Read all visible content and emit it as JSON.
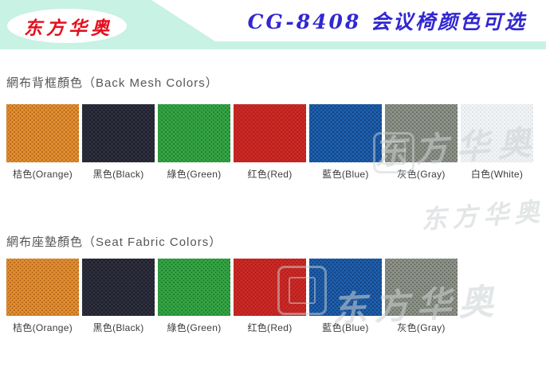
{
  "header": {
    "logo_text": "东方华奥",
    "logo_text_color": "#e60e1e",
    "banner_color": "#c8f2e3",
    "title": "CG-8408 会议椅颜色可选",
    "title_color": "#3227d2"
  },
  "sections": [
    {
      "heading": "網布背框顏色（Back Mesh Colors）",
      "swatches": [
        {
          "label": "桔色(Orange)",
          "base": "#e2912f",
          "weave": "#b5641c"
        },
        {
          "label": "黑色(Black)",
          "base": "#2e3040",
          "weave": "#191a23"
        },
        {
          "label": "綠色(Green)",
          "base": "#35a644",
          "weave": "#1e7d2f"
        },
        {
          "label": "红色(Red)",
          "base": "#cd2a26",
          "weave": "#a81c1a"
        },
        {
          "label": "藍色(Blue)",
          "base": "#1d5fae",
          "weave": "#133f7a"
        },
        {
          "label": "灰色(Gray)",
          "base": "#8f948b",
          "weave": "#666b62"
        },
        {
          "label": "白色(White)",
          "base": "#f2f4f6",
          "weave": "#dde1e5"
        }
      ]
    },
    {
      "heading": "網布座墊顏色（Seat Fabric Colors）",
      "swatches": [
        {
          "label": "桔色(Orange)",
          "base": "#e2912f",
          "weave": "#b5641c"
        },
        {
          "label": "黑色(Black)",
          "base": "#2e3040",
          "weave": "#191a23"
        },
        {
          "label": "綠色(Green)",
          "base": "#35a644",
          "weave": "#1e7d2f"
        },
        {
          "label": "红色(Red)",
          "base": "#cd2a26",
          "weave": "#a81c1a"
        },
        {
          "label": "藍色(Blue)",
          "base": "#1d5fae",
          "weave": "#133f7a"
        },
        {
          "label": "灰色(Gray)",
          "base": "#8f948b",
          "weave": "#666b62"
        }
      ]
    }
  ],
  "watermark": {
    "text": "东方华奥",
    "color": "#ccd2d2"
  }
}
